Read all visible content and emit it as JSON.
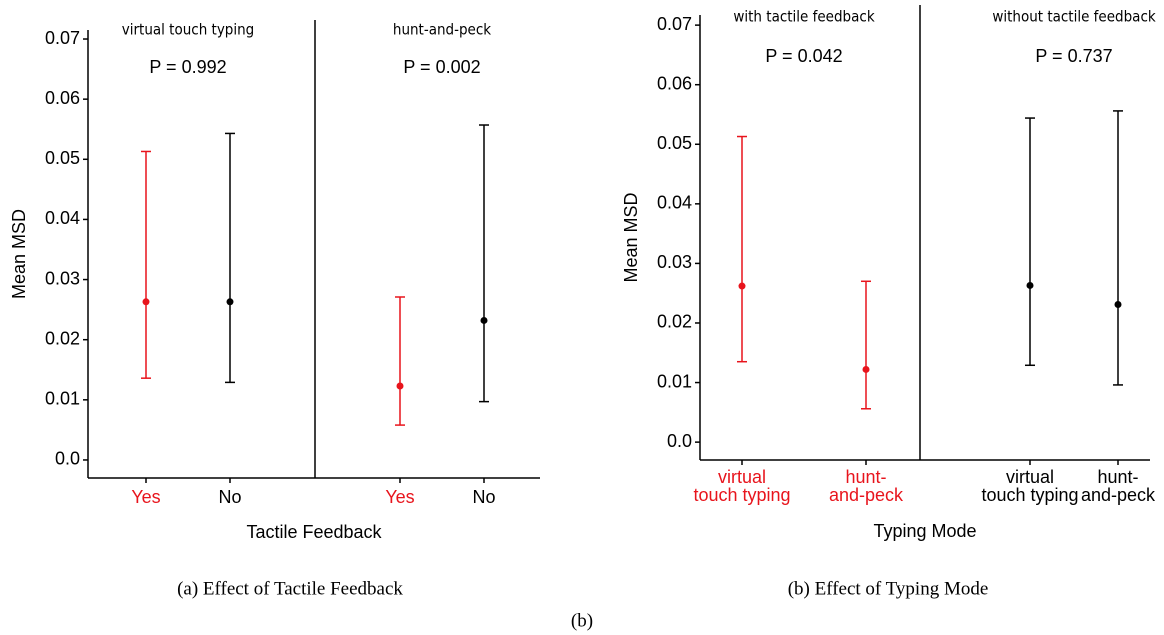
{
  "chart_data": [
    {
      "type": "errorbar",
      "ylabel": "Mean MSD",
      "xlabel": "Tactile Feedback",
      "ylim": [
        -0.003,
        0.0715
      ],
      "yticks": [
        {
          "value": 0,
          "label": "0.0"
        },
        0.01,
        0.02,
        0.03,
        0.04,
        0.05,
        0.06,
        0.07
      ],
      "groups": [
        {
          "name": "virtual touch typing",
          "annotation": "P = 0.992",
          "categories": [
            [
              "Yes"
            ],
            [
              "No"
            ]
          ],
          "colors": [
            "#e8141c",
            "#000000"
          ],
          "values": [
            0.0263,
            0.0263
          ],
          "lower": [
            0.0136,
            0.0129
          ],
          "upper": [
            0.0513,
            0.0543
          ]
        },
        {
          "name": "hunt-and-peck",
          "annotation": "P = 0.002",
          "categories": [
            [
              "Yes"
            ],
            [
              "No"
            ]
          ],
          "colors": [
            "#e8141c",
            "#000000"
          ],
          "values": [
            0.0123,
            0.0232
          ],
          "lower": [
            0.0058,
            0.0097
          ],
          "upper": [
            0.0271,
            0.0557
          ]
        }
      ]
    },
    {
      "type": "errorbar",
      "ylabel": "Mean MSD",
      "xlabel": "Typing Mode",
      "ylim": [
        -0.003,
        0.0717
      ],
      "yticks": [
        {
          "value": 0,
          "label": "0.0"
        },
        0.01,
        0.02,
        0.03,
        0.04,
        0.05,
        0.06,
        0.07
      ],
      "groups": [
        {
          "name": "with tactile feedback",
          "annotation": "P = 0.042",
          "categories": [
            [
              "virtual",
              "touch typing"
            ],
            [
              "hunt-",
              "and-peck"
            ]
          ],
          "colors": [
            "#e8141c",
            "#e8141c"
          ],
          "values": [
            0.0262,
            0.0122
          ],
          "lower": [
            0.0135,
            0.0056
          ],
          "upper": [
            0.0513,
            0.027
          ]
        },
        {
          "name": "without tactile feedback",
          "annotation": "P = 0.737",
          "categories": [
            [
              "virtual",
              "touch typing"
            ],
            [
              "hunt-",
              "and-peck"
            ]
          ],
          "colors": [
            "#000000",
            "#000000"
          ],
          "values": [
            0.0263,
            0.0231
          ],
          "lower": [
            0.0129,
            0.0096
          ],
          "upper": [
            0.0544,
            0.0556
          ]
        }
      ]
    }
  ],
  "captions": [
    "(a)   Effect of Tactile Feedback",
    "(b) Effect of Typing Mode",
    "(b)"
  ]
}
